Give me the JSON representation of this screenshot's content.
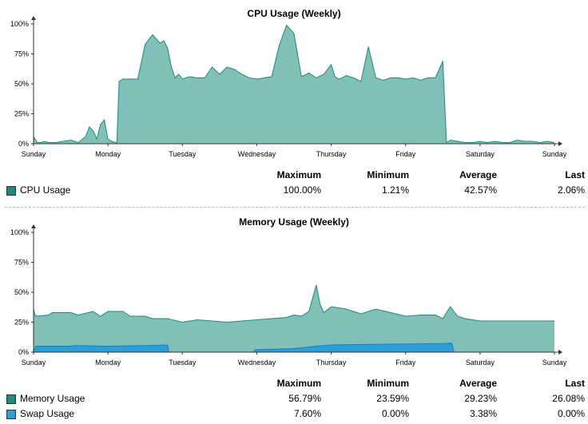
{
  "colors": {
    "cpu_fill": "#80c0b8",
    "cpu_line": "#1f8a7c",
    "mem_fill": "#80c0b8",
    "mem_line": "#1f8a7c",
    "swap_fill": "#2d9fd8",
    "swap_line": "#1a7fc0",
    "axis": "#333333"
  },
  "chart_data": [
    {
      "type": "area",
      "title": "CPU Usage (Weekly)",
      "xlabel": "",
      "ylabel": "",
      "ylim": [
        0,
        100
      ],
      "yticks": [
        "0%",
        "25%",
        "50%",
        "75%",
        "100%"
      ],
      "xticks": [
        "Sunday",
        "Monday",
        "Tuesday",
        "Wednesday",
        "Thursday",
        "Friday",
        "Saturday",
        "Sunday"
      ],
      "grid": false,
      "series": [
        {
          "name": "CPU Usage",
          "x_days": [
            0,
            0.05,
            0.1,
            0.15,
            0.2,
            0.3,
            0.4,
            0.5,
            0.6,
            0.7,
            0.75,
            0.8,
            0.85,
            0.9,
            0.95,
            1.0,
            1.05,
            1.1,
            1.12,
            1.15,
            1.2,
            1.3,
            1.4,
            1.5,
            1.6,
            1.7,
            1.75,
            1.8,
            1.85,
            1.9,
            1.95,
            2.0,
            2.05,
            2.1,
            2.2,
            2.3,
            2.4,
            2.5,
            2.6,
            2.7,
            2.8,
            2.9,
            3.0,
            3.1,
            3.2,
            3.3,
            3.4,
            3.5,
            3.6,
            3.7,
            3.8,
            3.9,
            4.0,
            4.05,
            4.1,
            4.15,
            4.2,
            4.3,
            4.4,
            4.5,
            4.6,
            4.7,
            4.8,
            4.9,
            5.0,
            5.1,
            5.2,
            5.3,
            5.4,
            5.5,
            5.55,
            5.6,
            5.7,
            5.8,
            5.9,
            6.0,
            6.1,
            6.2,
            6.3,
            6.4,
            6.5,
            6.6,
            6.7,
            6.8,
            6.9,
            7.0
          ],
          "values": [
            6,
            1,
            1,
            2,
            1,
            1,
            2,
            3,
            1,
            6,
            14,
            11,
            4,
            16,
            20,
            4,
            2,
            1,
            1,
            52,
            54,
            54,
            54,
            83,
            91,
            84,
            86,
            80,
            65,
            55,
            58,
            54,
            55,
            56,
            55,
            55,
            64,
            58,
            64,
            62,
            58,
            55,
            54,
            55,
            56,
            82,
            99,
            92,
            56,
            59,
            55,
            58,
            66,
            56,
            54,
            55,
            57,
            55,
            52,
            81,
            55,
            53,
            55,
            55,
            54,
            55,
            53,
            55,
            55,
            69,
            1,
            3,
            2,
            1,
            1,
            2,
            1,
            2,
            1,
            1,
            3,
            2,
            2,
            1,
            2,
            1
          ],
          "stats": {
            "Maximum": "100.00%",
            "Minimum": "1.21%",
            "Average": "42.57%",
            "Last": "2.06%"
          }
        }
      ]
    },
    {
      "type": "area",
      "title": "Memory Usage (Weekly)",
      "xlabel": "",
      "ylabel": "",
      "ylim": [
        0,
        100
      ],
      "yticks": [
        "0%",
        "25%",
        "50%",
        "75%",
        "100%"
      ],
      "xticks": [
        "Sunday",
        "Monday",
        "Tuesday",
        "Wednesday",
        "Thursday",
        "Friday",
        "Saturday",
        "Sunday"
      ],
      "grid": false,
      "series": [
        {
          "name": "Memory Usage",
          "x_days": [
            0,
            0.02,
            0.05,
            0.2,
            0.25,
            0.5,
            0.6,
            0.8,
            0.9,
            1.0,
            1.2,
            1.3,
            1.5,
            1.6,
            1.8,
            2.0,
            2.2,
            2.4,
            2.6,
            2.8,
            3.0,
            3.2,
            3.4,
            3.5,
            3.6,
            3.7,
            3.8,
            3.85,
            3.9,
            4.0,
            4.2,
            4.4,
            4.6,
            4.8,
            5.0,
            5.2,
            5.4,
            5.5,
            5.6,
            5.7,
            5.8,
            6.0,
            6.2,
            6.4,
            6.6,
            6.8,
            7.0
          ],
          "values": [
            36,
            31,
            30,
            31,
            33,
            33,
            31,
            34,
            30,
            34,
            34,
            30,
            30,
            28,
            28,
            25,
            27,
            26,
            25,
            26,
            27,
            28,
            29,
            31,
            30,
            34,
            56,
            40,
            33,
            38,
            36,
            32,
            36,
            33,
            30,
            31,
            31,
            28,
            38,
            30,
            28,
            26,
            26,
            26,
            26,
            26,
            26
          ],
          "stats": {
            "Maximum": "56.79%",
            "Minimum": "23.59%",
            "Average": "29.23%",
            "Last": "26.08%"
          }
        },
        {
          "name": "Swap Usage",
          "x_days": [
            0,
            0.03,
            0.05,
            0.5,
            0.55,
            1.0,
            1.5,
            1.8,
            1.82,
            1.84,
            2.95,
            2.98,
            3.5,
            3.8,
            4.0,
            4.5,
            5.0,
            5.5,
            5.62,
            5.65,
            7.0
          ],
          "values": [
            0,
            5,
            5,
            5,
            5.5,
            5,
            5.5,
            6,
            0,
            0,
            0,
            2,
            3,
            5,
            6,
            6.5,
            6.8,
            7.2,
            7.6,
            0,
            0
          ],
          "stats": {
            "Maximum": "7.60%",
            "Minimum": "0.00%",
            "Average": "3.38%",
            "Last": "0.00%"
          }
        }
      ]
    }
  ],
  "cpu": {
    "title": "CPU Usage (Weekly)",
    "headers": {
      "max": "Maximum",
      "min": "Minimum",
      "avg": "Average",
      "last": "Last"
    },
    "rows": [
      {
        "label": "CPU Usage",
        "max": "100.00%",
        "min": "1.21%",
        "avg": "42.57%",
        "last": "2.06%"
      }
    ]
  },
  "memory": {
    "title": "Memory Usage (Weekly)",
    "headers": {
      "max": "Maximum",
      "min": "Minimum",
      "avg": "Average",
      "last": "Last"
    },
    "rows": [
      {
        "label": "Memory Usage",
        "max": "56.79%",
        "min": "23.59%",
        "avg": "29.23%",
        "last": "26.08%"
      },
      {
        "label": "Swap Usage",
        "max": "7.60%",
        "min": "0.00%",
        "avg": "3.38%",
        "last": "0.00%"
      }
    ]
  }
}
